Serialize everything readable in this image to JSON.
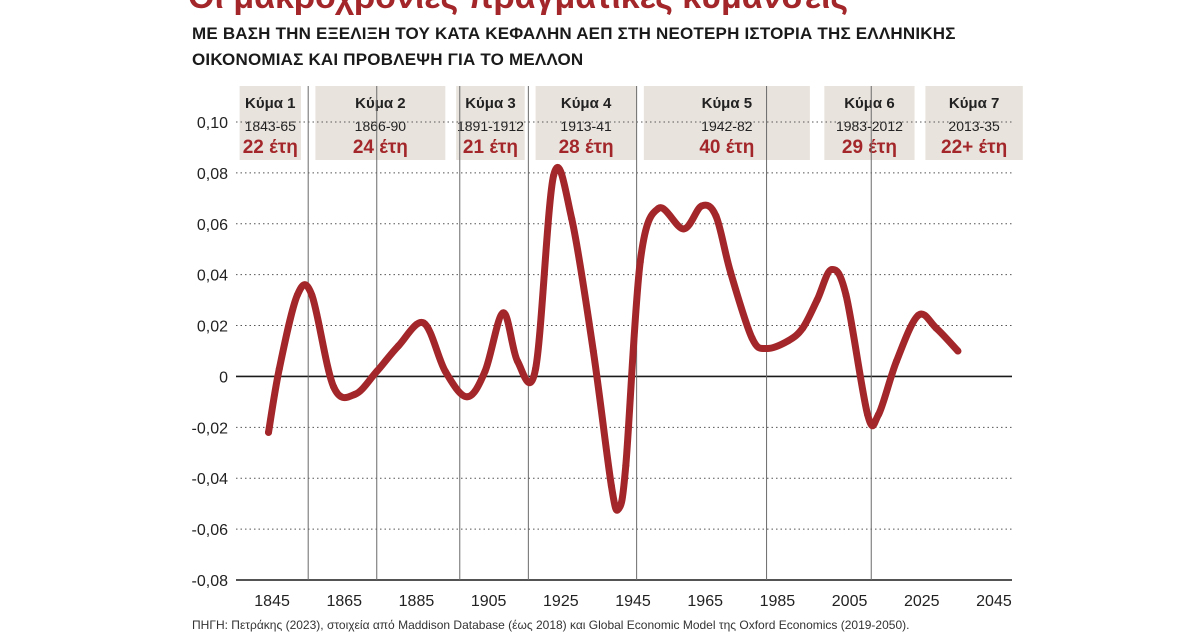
{
  "header": {
    "title": "Οι μακροχρόνιες πραγματικές κυμάνσεις",
    "subtitle_line1": "ΜΕ ΒΑΣΗ ΤΗΝ ΕΞΕΛΙΞΗ ΤΟΥ ΚΑΤΑ ΚΕΦΑΛΗΝ ΑΕΠ ΣΤΗ ΝΕΟΤΕΡΗ ΙΣΤΟΡΙΑ ΤΗΣ ΕΛΛΗΝΙΚΗΣ",
    "subtitle_line2": "ΟΙΚΟΝΟΜΙΑΣ ΚΑΙ ΠΡΟΒΛΕΨΗ ΓΙΑ ΤΟ ΜΕΛΛΟΝ"
  },
  "footer": {
    "source": "ΠΗΓΗ: Πετράκης (2023), στοιχεία από Maddison Database (έως 2018) και Global Economic Model της Oxford Economics (2019-2050)."
  },
  "colors": {
    "line": "#a3272a",
    "box": "#e9e3dd",
    "accent_text": "#a3272a",
    "grid": "#555555"
  },
  "chart_data": {
    "type": "line",
    "xlim": [
      1835,
      2050
    ],
    "ylim": [
      -0.08,
      0.1
    ],
    "x_ticks": [
      {
        "value": 1845,
        "label": "1845"
      },
      {
        "value": 1865,
        "label": "1865"
      },
      {
        "value": 1885,
        "label": "1885"
      },
      {
        "value": 1905,
        "label": "1905"
      },
      {
        "value": 1925,
        "label": "1925"
      },
      {
        "value": 1945,
        "label": "1945"
      },
      {
        "value": 1965,
        "label": "1965"
      },
      {
        "value": 1985,
        "label": "1985"
      },
      {
        "value": 2005,
        "label": "2005"
      },
      {
        "value": 2025,
        "label": "2025"
      },
      {
        "value": 2045,
        "label": "2045"
      }
    ],
    "y_ticks": [
      {
        "value": 0.1,
        "label": "0,10"
      },
      {
        "value": 0.08,
        "label": "0,08"
      },
      {
        "value": 0.06,
        "label": "0,06"
      },
      {
        "value": 0.04,
        "label": "0,04"
      },
      {
        "value": 0.02,
        "label": "0,02"
      },
      {
        "value": 0,
        "label": "0"
      },
      {
        "value": -0.02,
        "label": "-0,02"
      },
      {
        "value": -0.04,
        "label": "-0,04"
      },
      {
        "value": -0.06,
        "label": "-0,06"
      },
      {
        "value": -0.08,
        "label": "-0,08"
      }
    ],
    "grid": "horizontal dotted",
    "wave_boundaries": [
      1855,
      1874,
      1897,
      1916,
      1946,
      1982,
      2011
    ],
    "waves": [
      {
        "name": "Κύμα 1",
        "years": "1843-65",
        "duration": "22 έτη",
        "from": 1836,
        "to": 1853
      },
      {
        "name": "Κύμα 2",
        "years": "1866-90",
        "duration": "24 έτη",
        "from": 1857,
        "to": 1893
      },
      {
        "name": "Κύμα 3",
        "years": "1891-1912",
        "duration": "21 έτη",
        "from": 1896,
        "to": 1915
      },
      {
        "name": "Κύμα 4",
        "years": "1913-41",
        "duration": "28 έτη",
        "from": 1918,
        "to": 1946
      },
      {
        "name": "Κύμα 5",
        "years": "1942-82",
        "duration": "40 έτη",
        "from": 1948,
        "to": 1994
      },
      {
        "name": "Κύμα 6",
        "years": "1983-2012",
        "duration": "29 έτη",
        "from": 1998,
        "to": 2023
      },
      {
        "name": "Κύμα 7",
        "years": "2013-35",
        "duration": "22+ έτη",
        "from": 2026,
        "to": 2053
      }
    ],
    "series": [
      {
        "x": [
          1844,
          1847,
          1852,
          1856,
          1862,
          1868,
          1874,
          1880,
          1887,
          1893,
          1899,
          1904,
          1909,
          1913,
          1918,
          1923,
          1928,
          1934,
          1939,
          1941,
          1943,
          1947,
          1952,
          1959,
          1964,
          1968,
          1972,
          1978,
          1982,
          1988,
          1992,
          1996,
          2000,
          2004,
          2010,
          2013,
          2018,
          2024,
          2029,
          2035
        ],
        "y": [
          -0.022,
          0.003,
          0.032,
          0.032,
          -0.004,
          -0.007,
          0.002,
          0.012,
          0.021,
          0.002,
          -0.008,
          0.002,
          0.025,
          0.006,
          0.003,
          0.079,
          0.062,
          0.01,
          -0.043,
          -0.052,
          -0.035,
          0.045,
          0.066,
          0.058,
          0.067,
          0.063,
          0.041,
          0.015,
          0.011,
          0.014,
          0.019,
          0.03,
          0.042,
          0.032,
          -0.015,
          -0.015,
          0.006,
          0.024,
          0.019,
          0.01
        ]
      }
    ]
  }
}
